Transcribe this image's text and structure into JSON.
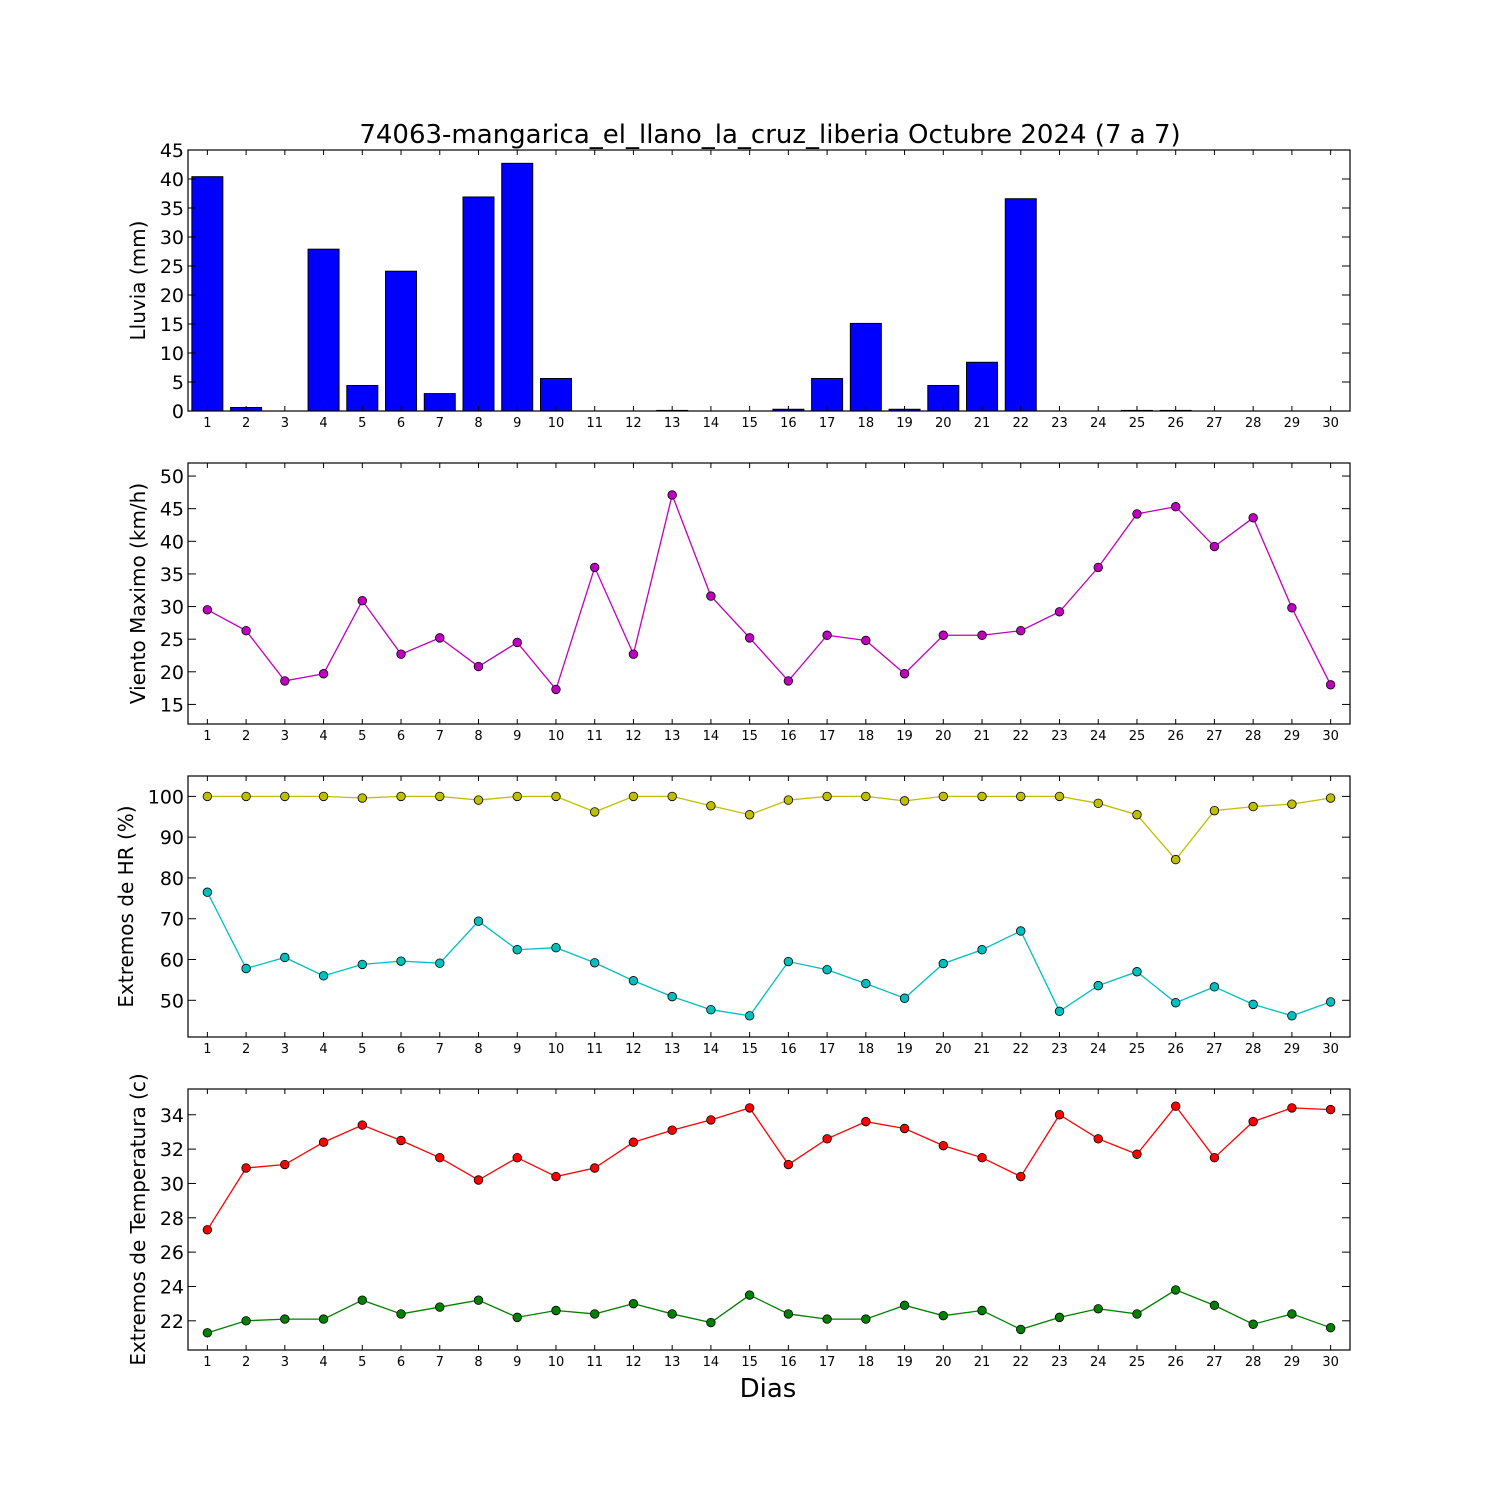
{
  "figure": {
    "title": "74063-mangarica_el_llano_la_cruz_liberia Octubre 2024  (7 a 7)",
    "xlabel": "Dias"
  },
  "chart_data": [
    {
      "type": "bar",
      "ylabel": "Lluvia (mm)",
      "x": [
        1,
        2,
        3,
        4,
        5,
        6,
        7,
        8,
        9,
        10,
        11,
        12,
        13,
        14,
        15,
        16,
        17,
        18,
        19,
        20,
        21,
        22,
        23,
        24,
        25,
        26,
        27,
        28,
        29,
        30
      ],
      "xlim": [
        0.5,
        30.5
      ],
      "ylim": [
        0,
        45
      ],
      "yticks": [
        0,
        5,
        10,
        15,
        20,
        25,
        30,
        35,
        40,
        45
      ],
      "series": [
        {
          "color": "#0000ff",
          "values": [
            40.4,
            0.6,
            0,
            27.9,
            4.4,
            24.1,
            3.0,
            36.9,
            42.7,
            5.6,
            0,
            0,
            0.1,
            0,
            0,
            0.3,
            5.6,
            15.1,
            0.3,
            4.4,
            8.4,
            36.6,
            0,
            0,
            0.1,
            0.1,
            0,
            0,
            0,
            0
          ]
        }
      ]
    },
    {
      "type": "line",
      "ylabel": "Viento Maximo (km/h)",
      "x": [
        1,
        2,
        3,
        4,
        5,
        6,
        7,
        8,
        9,
        10,
        11,
        12,
        13,
        14,
        15,
        16,
        17,
        18,
        19,
        20,
        21,
        22,
        23,
        24,
        25,
        26,
        27,
        28,
        29,
        30
      ],
      "xlim": [
        0.5,
        30.5
      ],
      "ylim": [
        12,
        52
      ],
      "yticks": [
        15,
        20,
        25,
        30,
        35,
        40,
        45,
        50
      ],
      "series": [
        {
          "color": "#bf00bf",
          "values": [
            29.5,
            26.3,
            18.6,
            19.7,
            30.9,
            22.7,
            25.2,
            20.8,
            24.5,
            17.3,
            36.0,
            22.7,
            47.1,
            31.6,
            25.2,
            18.6,
            25.6,
            24.8,
            19.7,
            25.6,
            25.6,
            26.3,
            29.2,
            36.0,
            44.2,
            45.3,
            39.2,
            43.6,
            29.8,
            18.0
          ]
        }
      ]
    },
    {
      "type": "line",
      "ylabel": "Extremos de HR (%)",
      "x": [
        1,
        2,
        3,
        4,
        5,
        6,
        7,
        8,
        9,
        10,
        11,
        12,
        13,
        14,
        15,
        16,
        17,
        18,
        19,
        20,
        21,
        22,
        23,
        24,
        25,
        26,
        27,
        28,
        29,
        30
      ],
      "xlim": [
        0.5,
        30.5
      ],
      "ylim": [
        41,
        105
      ],
      "yticks": [
        50,
        60,
        70,
        80,
        90,
        100
      ],
      "series": [
        {
          "color": "#bfbf00",
          "values": [
            100,
            100,
            100,
            100,
            99.6,
            100,
            100,
            99.1,
            100,
            100,
            96.2,
            100,
            100,
            97.7,
            95.5,
            99.1,
            100,
            100,
            98.9,
            100,
            100,
            100,
            100,
            98.3,
            95.5,
            84.5,
            96.5,
            97.5,
            98.1,
            99.6
          ]
        },
        {
          "color": "#00bfbf",
          "values": [
            76.5,
            57.8,
            60.5,
            56.0,
            58.8,
            59.6,
            59.1,
            69.4,
            62.4,
            62.9,
            59.2,
            54.8,
            50.9,
            47.7,
            46.2,
            59.5,
            57.5,
            54.1,
            50.5,
            59.0,
            62.4,
            67.0,
            47.3,
            53.6,
            57.0,
            49.4,
            53.3,
            49.0,
            46.2,
            49.6
          ]
        }
      ]
    },
    {
      "type": "line",
      "ylabel": "Extremos de Temperatura (c)",
      "x": [
        1,
        2,
        3,
        4,
        5,
        6,
        7,
        8,
        9,
        10,
        11,
        12,
        13,
        14,
        15,
        16,
        17,
        18,
        19,
        20,
        21,
        22,
        23,
        24,
        25,
        26,
        27,
        28,
        29,
        30
      ],
      "xlim": [
        0.5,
        30.5
      ],
      "ylim": [
        20.3,
        35.5
      ],
      "yticks": [
        22,
        24,
        26,
        28,
        30,
        32,
        34
      ],
      "series": [
        {
          "color": "#ff0000",
          "values": [
            27.3,
            30.9,
            31.1,
            32.4,
            33.4,
            32.5,
            31.5,
            30.2,
            31.5,
            30.4,
            30.9,
            32.4,
            33.1,
            33.7,
            34.4,
            31.1,
            32.6,
            33.6,
            33.2,
            32.2,
            31.5,
            30.4,
            34.0,
            32.6,
            31.7,
            34.5,
            31.5,
            33.6,
            34.4,
            34.3
          ]
        },
        {
          "color": "#008000",
          "values": [
            21.3,
            22.0,
            22.1,
            22.1,
            23.2,
            22.4,
            22.8,
            23.2,
            22.2,
            22.6,
            22.4,
            23.0,
            22.4,
            21.9,
            23.5,
            22.4,
            22.1,
            22.1,
            22.9,
            22.3,
            22.6,
            21.5,
            22.2,
            22.7,
            22.4,
            23.8,
            22.9,
            21.8,
            22.4,
            21.6
          ]
        }
      ]
    }
  ]
}
